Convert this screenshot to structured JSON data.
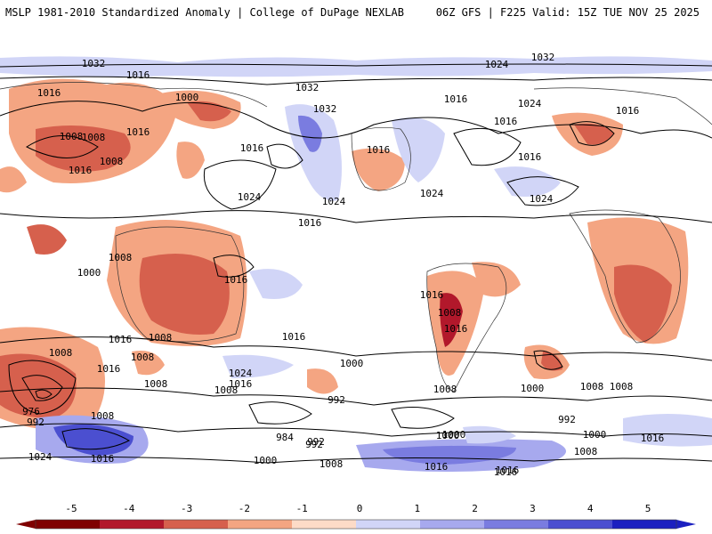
{
  "header": {
    "left_title": "MSLP 1981-2010 Standardized Anomaly | College of DuPage NEXLAB",
    "right_title": "06Z GFS | F225 Valid: 15Z TUE NOV 25 2025"
  },
  "colorbar": {
    "ticks": [
      "-5",
      "-4",
      "-3",
      "-2",
      "-1",
      "0",
      "1",
      "2",
      "3",
      "4",
      "5"
    ],
    "colors": [
      "#7f0000",
      "#b2182b",
      "#d6604d",
      "#f4a582",
      "#fddbc7",
      "#ffffff",
      "#d1d5f7",
      "#a7a9ee",
      "#7a7ce0",
      "#4b4fd0",
      "#1b20c0"
    ]
  },
  "isobar_labels": [
    {
      "text": "1032"
    },
    {
      "text": "1016"
    },
    {
      "text": "1016"
    },
    {
      "text": "1000"
    },
    {
      "text": "1008"
    },
    {
      "text": "1016"
    },
    {
      "text": "1008"
    },
    {
      "text": "1016"
    },
    {
      "text": "1008"
    },
    {
      "text": "1016"
    },
    {
      "text": "1024"
    },
    {
      "text": "1032"
    },
    {
      "text": "1032"
    },
    {
      "text": "1024"
    },
    {
      "text": "1016"
    },
    {
      "text": "1024"
    },
    {
      "text": "1016"
    },
    {
      "text": "1016"
    },
    {
      "text": "1024"
    },
    {
      "text": "1016"
    },
    {
      "text": "1032"
    },
    {
      "text": "1024"
    },
    {
      "text": "1016"
    },
    {
      "text": "1016"
    },
    {
      "text": "1008"
    },
    {
      "text": "1000"
    },
    {
      "text": "1016"
    },
    {
      "text": "1024"
    },
    {
      "text": "1016"
    },
    {
      "text": "1008"
    },
    {
      "text": "1008"
    },
    {
      "text": "1008"
    },
    {
      "text": "1016"
    },
    {
      "text": "1008"
    },
    {
      "text": "1016"
    },
    {
      "text": "1000"
    },
    {
      "text": "1008"
    },
    {
      "text": "992"
    },
    {
      "text": "1016"
    },
    {
      "text": "976"
    },
    {
      "text": "992"
    },
    {
      "text": "1008"
    },
    {
      "text": "1024"
    },
    {
      "text": "1016"
    },
    {
      "text": "1024"
    },
    {
      "text": "1008"
    },
    {
      "text": "1000"
    },
    {
      "text": "992"
    },
    {
      "text": "1016"
    },
    {
      "text": "984"
    },
    {
      "text": "992"
    },
    {
      "text": "1000"
    },
    {
      "text": "1008"
    },
    {
      "text": "1016"
    },
    {
      "text": "1008"
    },
    {
      "text": "1016"
    },
    {
      "text": "1008"
    },
    {
      "text": "1000"
    },
    {
      "text": "1008"
    },
    {
      "text": "992"
    },
    {
      "text": "1000"
    },
    {
      "text": "1000"
    },
    {
      "text": "1016"
    },
    {
      "text": "1008"
    },
    {
      "text": "1016"
    },
    {
      "text": "1016"
    }
  ]
}
